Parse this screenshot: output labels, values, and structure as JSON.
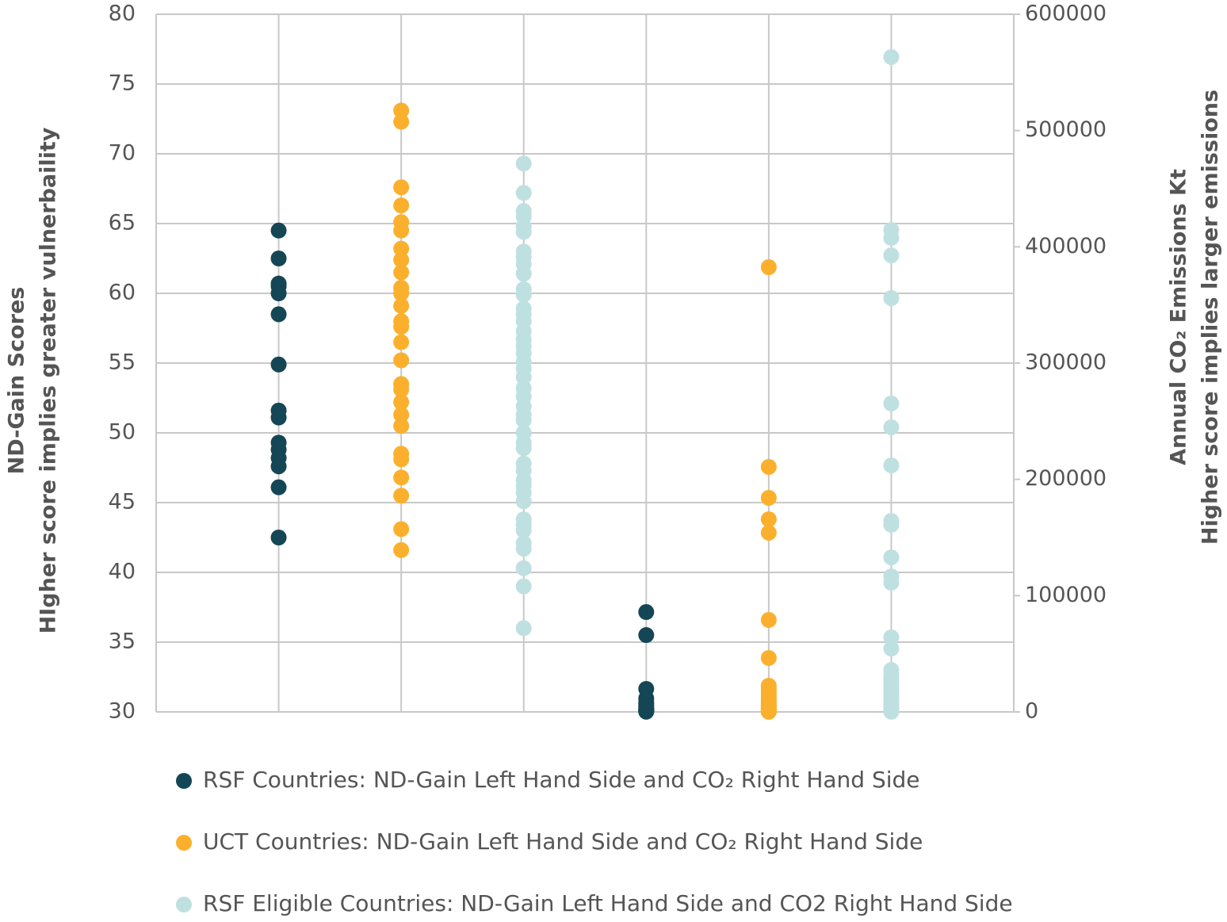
{
  "chart_data": {
    "type": "strip",
    "y_label": [
      "ND-Gain Scores",
      "HIgher score implies greater vulnerbaility"
    ],
    "y2_label": [
      "Annual CO₂ Emissions Kt",
      "Higher score implies larger emissions"
    ],
    "ylim": [
      30,
      80
    ],
    "yticks": [
      30,
      35,
      40,
      45,
      50,
      55,
      60,
      65,
      70,
      75,
      80
    ],
    "y2lim": [
      0,
      600000
    ],
    "y2ticks": [
      0,
      100000,
      200000,
      300000,
      400000,
      500000,
      600000
    ],
    "grid": true,
    "series": [
      {
        "name": "RSF Countries: ND-Gain Left Hand Side and CO₂ Right Hand Side",
        "color": "#154655",
        "values": [
          64.5,
          62.5,
          60.7,
          60.5,
          60.0,
          58.5,
          54.9,
          51.6,
          51.1,
          49.3,
          48.8,
          48.2,
          47.6,
          46.1,
          42.5
        ],
        "y2_values": [
          85900,
          66100,
          19800,
          11600,
          8200,
          6800,
          5100,
          3400,
          2400,
          1700,
          1200,
          900,
          700,
          400,
          200
        ]
      },
      {
        "name": "UCT Countries: ND-Gain Left Hand Side and CO₂ Right Hand Side",
        "color": "#FBB02D",
        "values": [
          73.1,
          72.3,
          67.6,
          66.3,
          65.1,
          64.5,
          63.2,
          62.4,
          61.5,
          60.4,
          60.0,
          59.1,
          58.0,
          57.6,
          56.5,
          55.2,
          53.5,
          53.1,
          52.2,
          51.3,
          50.5,
          48.5,
          48.1,
          46.8,
          45.5,
          43.1,
          41.6
        ],
        "y2_values": [
          382500,
          210700,
          184100,
          165700,
          154100,
          79100,
          46400,
          22500,
          17000,
          12300,
          7500,
          4100,
          700,
          20000,
          14500,
          10000,
          9000,
          6000,
          5000,
          3000,
          2500,
          2000,
          1500,
          1000,
          500,
          300,
          100
        ]
      },
      {
        "name": "RSF Eligible Countries: ND-Gain Left Hand Side and CO2 Right Hand Side",
        "color": "#BFE0E0",
        "values": [
          69.3,
          67.2,
          65.9,
          65.5,
          64.8,
          64.4,
          63.0,
          62.6,
          62.1,
          61.4,
          60.3,
          59.9,
          58.9,
          58.5,
          58.0,
          57.3,
          56.7,
          56.2,
          55.7,
          55.1,
          54.6,
          54.0,
          53.2,
          52.6,
          51.9,
          51.3,
          50.9,
          50.0,
          49.3,
          48.9,
          47.8,
          47.3,
          46.6,
          46.2,
          45.7,
          45.1,
          43.8,
          43.4,
          43.0,
          42.1,
          41.7,
          40.3,
          39.0,
          36.0
        ],
        "y2_values": [
          563200,
          414500,
          407700,
          392700,
          355900,
          265200,
          244800,
          212000,
          164300,
          160900,
          132900,
          116600,
          111100,
          64100,
          54500,
          36100,
          32000,
          25900,
          20500,
          15000,
          9500,
          4800,
          700,
          30000,
          28000,
          23000,
          18000,
          13000,
          11000,
          8000,
          7000,
          6000,
          5500,
          4000,
          3500,
          3000,
          2500,
          2000,
          1500,
          1200,
          1000,
          600,
          400,
          200
        ]
      }
    ]
  }
}
